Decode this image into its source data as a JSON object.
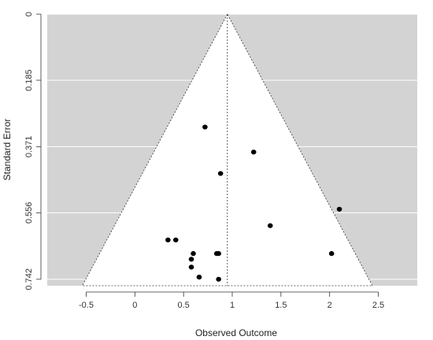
{
  "chart_data": {
    "type": "scatter",
    "subtype": "funnel-plot",
    "xlabel": "Observed Outcome",
    "ylabel": "Standard Error",
    "xlim": [
      -0.9,
      2.9
    ],
    "ylim": [
      0,
      0.76
    ],
    "y_reversed": true,
    "x_ticks": [
      {
        "value": -0.5,
        "label": "-0.5"
      },
      {
        "value": 0,
        "label": "0"
      },
      {
        "value": 0.5,
        "label": "0.5"
      },
      {
        "value": 1,
        "label": "1"
      },
      {
        "value": 1.5,
        "label": "1.5"
      },
      {
        "value": 2,
        "label": "2"
      },
      {
        "value": 2.5,
        "label": "2.5"
      }
    ],
    "y_ticks": [
      {
        "value": 0,
        "label": "0"
      },
      {
        "value": 0.185,
        "label": "0.185"
      },
      {
        "value": 0.371,
        "label": "0.371"
      },
      {
        "value": 0.556,
        "label": "0.556"
      },
      {
        "value": 0.742,
        "label": "0.742"
      }
    ],
    "summary_estimate": 0.95,
    "funnel": {
      "center": 0.95,
      "z": 1.96,
      "se_max": 0.76
    },
    "grid": true,
    "colors": {
      "background": "#d3d3d3",
      "funnel": "#ffffff",
      "point": "#000000",
      "gridline": "#ffffff"
    },
    "points": [
      {
        "x": 0.72,
        "y": 0.316
      },
      {
        "x": 1.22,
        "y": 0.386
      },
      {
        "x": 0.88,
        "y": 0.446
      },
      {
        "x": 2.1,
        "y": 0.546
      },
      {
        "x": 1.39,
        "y": 0.592
      },
      {
        "x": 0.34,
        "y": 0.632
      },
      {
        "x": 0.42,
        "y": 0.632
      },
      {
        "x": 0.6,
        "y": 0.67
      },
      {
        "x": 0.84,
        "y": 0.67
      },
      {
        "x": 0.86,
        "y": 0.67
      },
      {
        "x": 2.02,
        "y": 0.67
      },
      {
        "x": 0.58,
        "y": 0.686
      },
      {
        "x": 0.58,
        "y": 0.708
      },
      {
        "x": 0.66,
        "y": 0.736
      },
      {
        "x": 0.86,
        "y": 0.742
      }
    ]
  }
}
